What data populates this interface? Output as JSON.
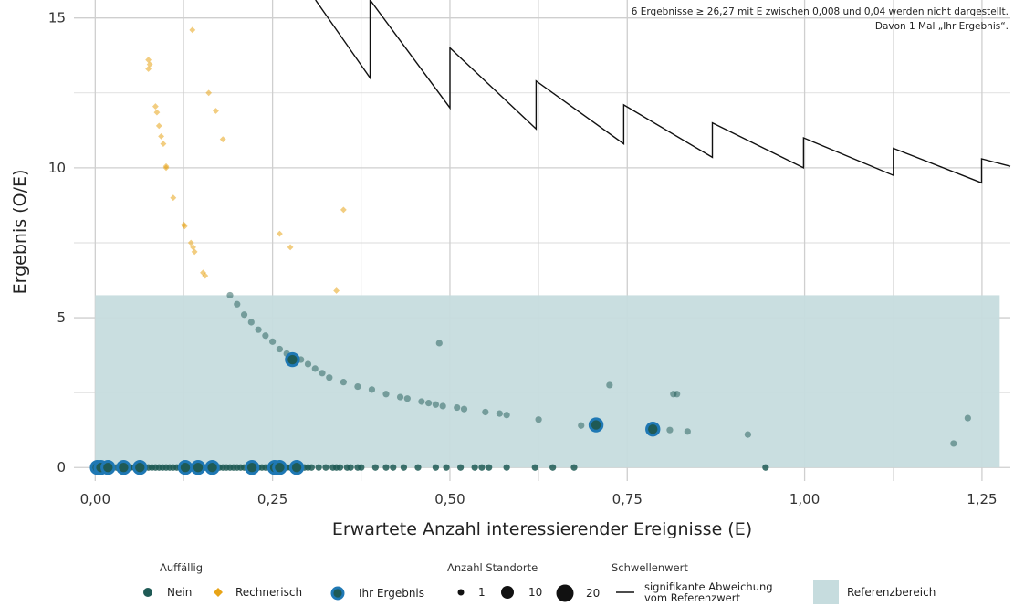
{
  "chart_data": {
    "type": "scatter",
    "xlabel": "Erwartete Anzahl interessierender Ereignisse (E)",
    "ylabel": "Ergebnis (O/E)",
    "xlim": [
      -0.03,
      1.29
    ],
    "ylim": [
      -0.45,
      15.6
    ],
    "x_ticks": [
      0,
      0.25,
      0.5,
      0.75,
      1.0,
      1.25
    ],
    "x_tick_labels": [
      "0,00",
      "0,25",
      "0,50",
      "0,75",
      "1,00",
      "1,25"
    ],
    "y_ticks": [
      0,
      5,
      10,
      15
    ],
    "y_tick_labels": [
      "0",
      "5",
      "10",
      "15"
    ],
    "grid": true,
    "notes": [
      "6 Ergebnisse ≥ 26,27 mit E zwischen 0,008 und 0,04 werden nicht dargestellt.",
      "Davon 1 Mal „Ihr Ergebnis“."
    ],
    "reference_range": {
      "x": [
        0,
        1.275
      ],
      "y": [
        0,
        5.75
      ]
    },
    "threshold_line": [
      [
        0.3105,
        15.6
      ],
      [
        0.3875,
        13.0
      ],
      [
        0.3875,
        15.6
      ],
      [
        0.5,
        12.0
      ],
      [
        0.5,
        14.0
      ],
      [
        0.6215,
        11.3
      ],
      [
        0.6215,
        12.9
      ],
      [
        0.745,
        10.8
      ],
      [
        0.745,
        12.1
      ],
      [
        0.87,
        10.35
      ],
      [
        0.87,
        11.5
      ],
      [
        0.9985,
        10.0
      ],
      [
        0.9985,
        11.0
      ],
      [
        1.125,
        9.75
      ],
      [
        1.125,
        10.65
      ],
      [
        1.2495,
        9.5
      ],
      [
        1.2495,
        10.3
      ],
      [
        1.29,
        10.05
      ]
    ],
    "series": [
      {
        "name": "Nein",
        "points": [
          [
            0.002,
            0
          ],
          [
            0.006,
            0
          ],
          [
            0.01,
            0
          ],
          [
            0.015,
            0
          ],
          [
            0.02,
            0
          ],
          [
            0.03,
            0
          ],
          [
            0.035,
            0
          ],
          [
            0.045,
            0
          ],
          [
            0.05,
            0
          ],
          [
            0.055,
            0
          ],
          [
            0.07,
            0
          ],
          [
            0.075,
            0
          ],
          [
            0.08,
            0
          ],
          [
            0.085,
            0
          ],
          [
            0.09,
            0
          ],
          [
            0.095,
            0
          ],
          [
            0.1,
            0
          ],
          [
            0.105,
            0
          ],
          [
            0.11,
            0
          ],
          [
            0.115,
            0
          ],
          [
            0.12,
            0
          ],
          [
            0.13,
            0
          ],
          [
            0.135,
            0
          ],
          [
            0.145,
            0
          ],
          [
            0.15,
            0
          ],
          [
            0.155,
            0
          ],
          [
            0.16,
            0
          ],
          [
            0.17,
            0
          ],
          [
            0.175,
            0
          ],
          [
            0.18,
            0
          ],
          [
            0.185,
            0
          ],
          [
            0.19,
            0
          ],
          [
            0.195,
            0
          ],
          [
            0.2,
            0
          ],
          [
            0.205,
            0
          ],
          [
            0.21,
            0
          ],
          [
            0.215,
            0
          ],
          [
            0.225,
            0
          ],
          [
            0.23,
            0
          ],
          [
            0.235,
            0
          ],
          [
            0.24,
            0
          ],
          [
            0.245,
            0
          ],
          [
            0.255,
            0
          ],
          [
            0.265,
            0
          ],
          [
            0.27,
            0
          ],
          [
            0.275,
            0
          ],
          [
            0.29,
            0
          ],
          [
            0.295,
            0
          ],
          [
            0.3,
            0
          ],
          [
            0.305,
            0
          ],
          [
            0.315,
            0
          ],
          [
            0.325,
            0
          ],
          [
            0.335,
            0
          ],
          [
            0.34,
            0
          ],
          [
            0.345,
            0
          ],
          [
            0.355,
            0
          ],
          [
            0.36,
            0
          ],
          [
            0.37,
            0
          ],
          [
            0.375,
            0
          ],
          [
            0.395,
            0
          ],
          [
            0.41,
            0
          ],
          [
            0.42,
            0
          ],
          [
            0.435,
            0
          ],
          [
            0.455,
            0
          ],
          [
            0.48,
            0
          ],
          [
            0.495,
            0
          ],
          [
            0.515,
            0
          ],
          [
            0.535,
            0
          ],
          [
            0.545,
            0
          ],
          [
            0.555,
            0
          ],
          [
            0.58,
            0
          ],
          [
            0.62,
            0
          ],
          [
            0.645,
            0
          ],
          [
            0.675,
            0
          ],
          [
            0.945,
            0
          ],
          [
            0.19,
            5.75
          ],
          [
            0.2,
            5.45
          ],
          [
            0.21,
            5.1
          ],
          [
            0.22,
            4.85
          ],
          [
            0.23,
            4.6
          ],
          [
            0.24,
            4.4
          ],
          [
            0.25,
            4.2
          ],
          [
            0.26,
            3.95
          ],
          [
            0.27,
            3.8
          ],
          [
            0.29,
            3.6
          ],
          [
            0.3,
            3.45
          ],
          [
            0.31,
            3.3
          ],
          [
            0.32,
            3.15
          ],
          [
            0.33,
            3.0
          ],
          [
            0.35,
            2.85
          ],
          [
            0.37,
            2.7
          ],
          [
            0.39,
            2.6
          ],
          [
            0.41,
            2.45
          ],
          [
            0.43,
            2.35
          ],
          [
            0.44,
            2.3
          ],
          [
            0.46,
            2.2
          ],
          [
            0.47,
            2.15
          ],
          [
            0.48,
            2.1
          ],
          [
            0.49,
            2.05
          ],
          [
            0.51,
            2.0
          ],
          [
            0.52,
            1.95
          ],
          [
            0.55,
            1.85
          ],
          [
            0.57,
            1.8
          ],
          [
            0.58,
            1.75
          ],
          [
            0.625,
            1.6
          ],
          [
            0.685,
            1.4
          ],
          [
            0.81,
            1.25
          ],
          [
            0.835,
            1.2
          ],
          [
            0.92,
            1.1
          ],
          [
            0.485,
            4.15
          ],
          [
            0.725,
            2.75
          ],
          [
            0.82,
            2.45
          ],
          [
            0.815,
            2.45
          ],
          [
            1.21,
            0.8
          ],
          [
            1.23,
            1.65
          ]
        ]
      },
      {
        "name": "Rechnerisch",
        "points": [
          [
            0.075,
            13.6
          ],
          [
            0.077,
            13.45
          ],
          [
            0.075,
            13.3
          ],
          [
            0.085,
            12.05
          ],
          [
            0.087,
            11.85
          ],
          [
            0.09,
            11.4
          ],
          [
            0.093,
            11.05
          ],
          [
            0.096,
            10.8
          ],
          [
            0.1,
            10.05
          ],
          [
            0.1,
            10.0
          ],
          [
            0.11,
            9.0
          ],
          [
            0.125,
            8.1
          ],
          [
            0.126,
            8.05
          ],
          [
            0.135,
            7.5
          ],
          [
            0.138,
            7.35
          ],
          [
            0.14,
            7.2
          ],
          [
            0.152,
            6.5
          ],
          [
            0.155,
            6.4
          ],
          [
            0.137,
            14.6
          ],
          [
            0.16,
            12.5
          ],
          [
            0.17,
            11.9
          ],
          [
            0.18,
            10.95
          ],
          [
            0.26,
            7.8
          ],
          [
            0.275,
            7.35
          ],
          [
            0.35,
            8.6
          ],
          [
            0.34,
            5.9
          ]
        ]
      },
      {
        "name": "Ihr Ergebnis",
        "points": [
          [
            0.003,
            0
          ],
          [
            0.008,
            0
          ],
          [
            0.018,
            0
          ],
          [
            0.04,
            0
          ],
          [
            0.063,
            0
          ],
          [
            0.127,
            0
          ],
          [
            0.145,
            0
          ],
          [
            0.165,
            0
          ],
          [
            0.221,
            0
          ],
          [
            0.253,
            0
          ],
          [
            0.26,
            0
          ],
          [
            0.284,
            0
          ],
          [
            0.278,
            3.6
          ],
          [
            0.706,
            1.42
          ],
          [
            0.786,
            1.28
          ]
        ]
      }
    ]
  },
  "legend": {
    "auffaellig_title": "Auffällig",
    "nein": "Nein",
    "rechnerisch": "Rechnerisch",
    "ihr": "Ihr Ergebnis",
    "standorte_title": "Anzahl Standorte",
    "size_1": "1",
    "size_10": "10",
    "size_20": "20",
    "schwellen_title": "Schwellenwert",
    "schwellen_line1": "signifikante Abweichung",
    "schwellen_line2": "vom Referenzwert",
    "referenz": "Referenzbereich"
  },
  "colors": {
    "nein": "#1f5a55",
    "rechnerisch": "#e8a417",
    "ihr_ring": "#1f78b4",
    "reference": "#c6dcde",
    "grid": "#cfcfcf"
  }
}
